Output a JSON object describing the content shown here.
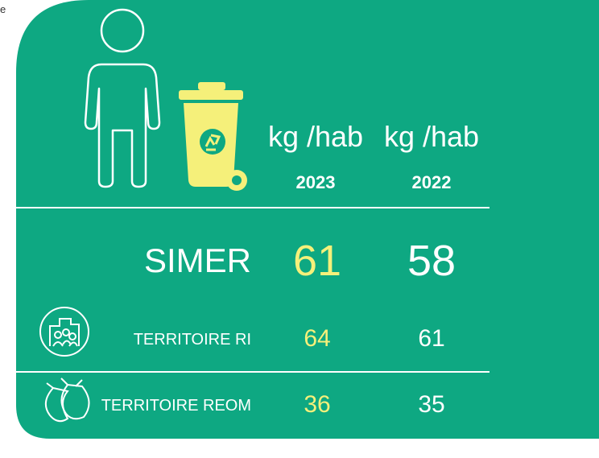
{
  "stray_text": "e",
  "header": {
    "columns": [
      {
        "unit": "kg /hab",
        "year": "2023"
      },
      {
        "unit": "kg /hab",
        "year": "2022"
      }
    ]
  },
  "rows": [
    {
      "name": "SIMER",
      "values": [
        "61",
        "58"
      ]
    },
    {
      "name": "TERRITOIRE RI",
      "values": [
        "64",
        "61"
      ]
    },
    {
      "name": "TERRITOIRE REOM",
      "values": [
        "36",
        "35"
      ]
    }
  ]
}
